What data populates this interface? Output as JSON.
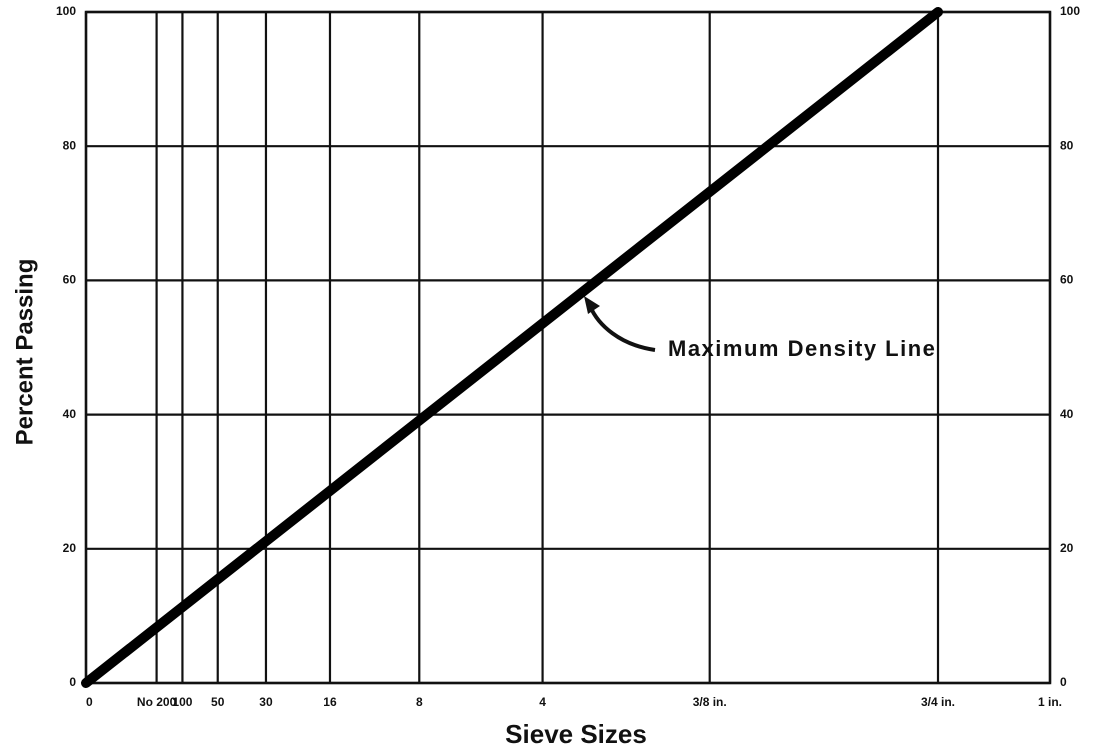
{
  "chart_data": {
    "type": "line",
    "x_label": "Sieve Sizes",
    "y_label": "Percent Passing",
    "annotation": "Maximum Density Line",
    "xscale": "power",
    "xpower": 0.45,
    "xlim": [
      0,
      25
    ],
    "xticks": [
      {
        "value": 0,
        "label": "0"
      },
      {
        "value": 0.075,
        "label": "No 200"
      },
      {
        "value": 0.15,
        "label": "100"
      },
      {
        "value": 0.3,
        "label": "50"
      },
      {
        "value": 0.6,
        "label": "30"
      },
      {
        "value": 1.18,
        "label": "16"
      },
      {
        "value": 2.36,
        "label": "8"
      },
      {
        "value": 4.75,
        "label": "4"
      },
      {
        "value": 9.5,
        "label": "3/8 in."
      },
      {
        "value": 19,
        "label": "3/4 in."
      },
      {
        "value": 25,
        "label": "1 in."
      }
    ],
    "ylim": [
      0,
      100
    ],
    "yticks": [
      0,
      20,
      40,
      60,
      80,
      100
    ],
    "grid": true,
    "x": [
      0,
      19
    ],
    "series": [
      {
        "name": "Maximum Density Line",
        "color": "#000000",
        "values": [
          0,
          100
        ]
      }
    ]
  }
}
